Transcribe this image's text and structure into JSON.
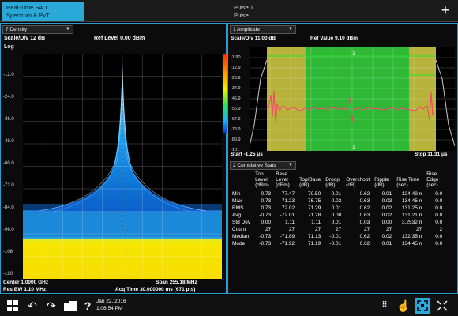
{
  "tabs": {
    "left": {
      "line1": "Real-Time SA 1",
      "line2": "Spectrum & PvT"
    },
    "right": {
      "line1": "Pulse 1",
      "line2": "Pulse"
    },
    "add_label": "+"
  },
  "left_window": {
    "trace_dropdown": "7 Density",
    "scale_div": "Scale/Div 12 dB",
    "ref_level": "Ref Level 0.00 dBm",
    "scale_type": "Log",
    "y_ticks": [
      "-12.0",
      "-24.0",
      "-36.0",
      "-48.0",
      "-60.0",
      "-72.0",
      "-84.0",
      "-96.0",
      "-108",
      "-120"
    ],
    "center": "Center 1.0000 GHz",
    "res_bw": "Res BW 1.10 MHz",
    "span": "Span 255.18 MHz",
    "acq_time": "Acq Time 30.000000 ms (671 pts)"
  },
  "right_window": {
    "trace_dropdown": "1 Amplitude",
    "scale_div": "Scale/Div 11.00 dB",
    "ref_value": "Ref Value 9.10 dBm",
    "y_ticks": [
      "-1.90",
      "-12.9",
      "-23.9",
      "-34.9",
      "-45.9",
      "-56.9",
      "-67.9",
      "-78.9",
      "-89.9",
      "-101"
    ],
    "marker_label": "1",
    "start": "Start -1.25 μs",
    "stop": "Stop 11.31 μs",
    "table_dropdown": "2 Cumulative Stats",
    "table": {
      "headers": [
        "",
        "Top Level (dBm)",
        "Base Level (dBm)",
        "Top/Base (dB)",
        "Droop (dB)",
        "Overshoot (dB)",
        "Ripple (dB)",
        "Rise Time (sec)",
        "Rise Edge (sec)"
      ],
      "rows": [
        [
          "Min",
          "-0.73",
          "-77.47",
          "70.50",
          "-0.01",
          "0.62",
          "0.01",
          "124.49 n",
          "0.0"
        ],
        [
          "Max",
          "-0.73",
          "-71.23",
          "76.75",
          "0.02",
          "0.63",
          "0.03",
          "134.45 n",
          "0.0"
        ],
        [
          "RMS",
          "0.73",
          "72.02",
          "71.29",
          "0.01",
          "0.62",
          "0.02",
          "131.25 n",
          "0.0"
        ],
        [
          "Avg",
          "-0.73",
          "-72.01",
          "71.28",
          "0.00",
          "0.63",
          "0.02",
          "131.21 n",
          "0.0"
        ],
        [
          "Std Dev",
          "0.00",
          "1.11",
          "1.11",
          "0.01",
          "0.03",
          "0.00",
          "3.2532 n",
          "0.0"
        ],
        [
          "Count",
          "27",
          "27",
          "27",
          "27",
          "27",
          "27",
          "27",
          "2"
        ],
        [
          "Median",
          "-0.73",
          "-71.89",
          "71.13",
          "-0.01",
          "0.62",
          "0.02",
          "132.35 n",
          "0.0"
        ],
        [
          "Mode",
          "-0.73",
          "-71.92",
          "71.19",
          "-0.01",
          "0.62",
          "0.01",
          "134.45 n",
          "0.0"
        ]
      ]
    }
  },
  "taskbar": {
    "date": "Jan 22, 2016",
    "time": "1:06:54 PM",
    "icons": [
      "windows-start-icon",
      "undo-icon",
      "redo-icon",
      "folder-icon",
      "help-icon",
      "grid-icon",
      "touch-icon",
      "zoom-fit-icon",
      "fullscreen-icon"
    ]
  },
  "colors": {
    "accent": "#2aa9d8",
    "pulse_green": "#2fb836",
    "pulse_yellow": "#b6b23a",
    "trace_red": "#ff3a6a",
    "trace_green": "#29e329",
    "density_blue": "#1aa7ff",
    "density_yellow": "#f2e200"
  }
}
